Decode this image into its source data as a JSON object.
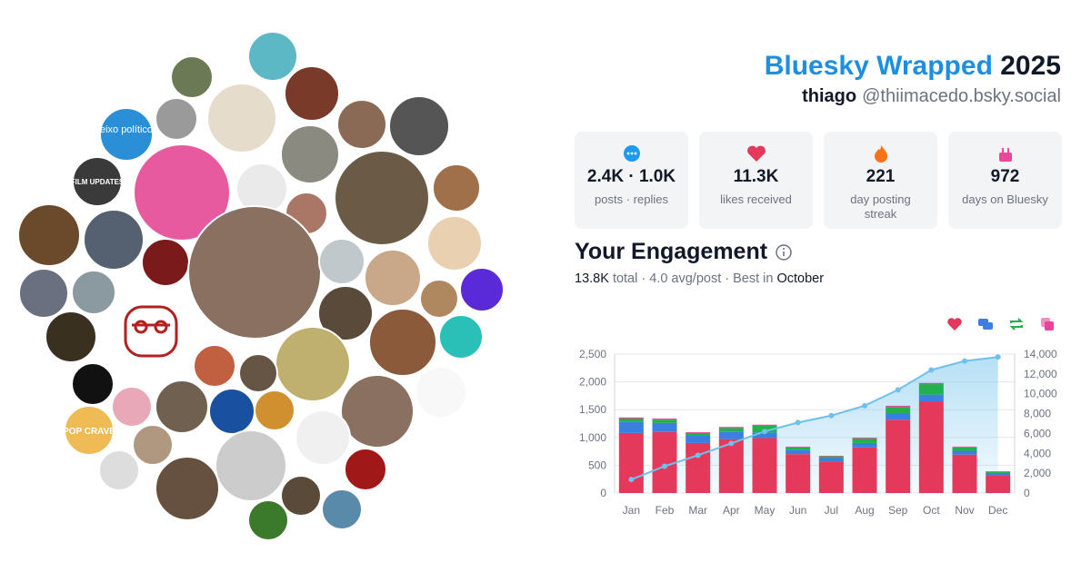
{
  "header": {
    "title": "Bluesky Wrapped",
    "year": "2025",
    "name": "thiago",
    "handle": "@thiimacedo.bsky.social"
  },
  "stats": [
    {
      "value": "2.4K · 1.0K",
      "label": "posts · replies"
    },
    {
      "value": "11.3K",
      "label": "likes received"
    },
    {
      "value": "221",
      "label": "day posting streak"
    },
    {
      "value": "972",
      "label": "days on Bluesky"
    }
  ],
  "avatars": {
    "labels": [
      "eixo político",
      "FILM UPDATES",
      "POP CRAVE"
    ]
  },
  "engagement": {
    "title": "Your Engagement",
    "total": "13.8K",
    "summary": "total · 4.0 avg/post · Best in",
    "best_month": "October"
  },
  "chart_data": {
    "type": "bar",
    "stacked": true,
    "grid": true,
    "categories": [
      "Jan",
      "Feb",
      "Mar",
      "Apr",
      "May",
      "Jun",
      "Jul",
      "Aug",
      "Sep",
      "Oct",
      "Nov",
      "Dec"
    ],
    "series": [
      {
        "color": "#e5395b",
        "values": [
          1080,
          1100,
          900,
          970,
          990,
          700,
          570,
          820,
          1320,
          1650,
          690,
          320
        ]
      },
      {
        "color": "#3b7fe0",
        "values": [
          200,
          160,
          130,
          130,
          100,
          80,
          60,
          80,
          110,
          120,
          70,
          40
        ]
      },
      {
        "color": "#22b14c",
        "values": [
          60,
          60,
          50,
          70,
          120,
          40,
          30,
          80,
          120,
          190,
          60,
          25
        ]
      },
      {
        "color": "#e8459a",
        "values": [
          20,
          20,
          15,
          20,
          20,
          15,
          10,
          15,
          20,
          20,
          15,
          5
        ]
      },
      {
        "color": "#6ec1ec",
        "type": "line",
        "axis": "y2",
        "values": [
          1360,
          2700,
          3800,
          5000,
          6200,
          7100,
          7800,
          8800,
          10400,
          12400,
          13300,
          13700
        ]
      }
    ],
    "ylim": [
      0,
      2500
    ],
    "yticks": [
      0,
      500,
      {
        "value": 1000,
        "label": "1,000"
      },
      {
        "value": 1500,
        "label": "1,500"
      },
      {
        "value": 2000,
        "label": "2,000"
      },
      {
        "value": 2500,
        "label": "2,500"
      }
    ],
    "y2lim": [
      0,
      14000
    ],
    "y2ticks": [
      0,
      {
        "value": 2000,
        "label": "2,000"
      },
      {
        "value": 4000,
        "label": "4,000"
      },
      {
        "value": 6000,
        "label": "6,000"
      },
      {
        "value": 8000,
        "label": "8,000"
      },
      {
        "value": 10000,
        "label": "10,000"
      },
      {
        "value": 12000,
        "label": "12,000"
      },
      {
        "value": 14000,
        "label": "14,000"
      }
    ]
  }
}
